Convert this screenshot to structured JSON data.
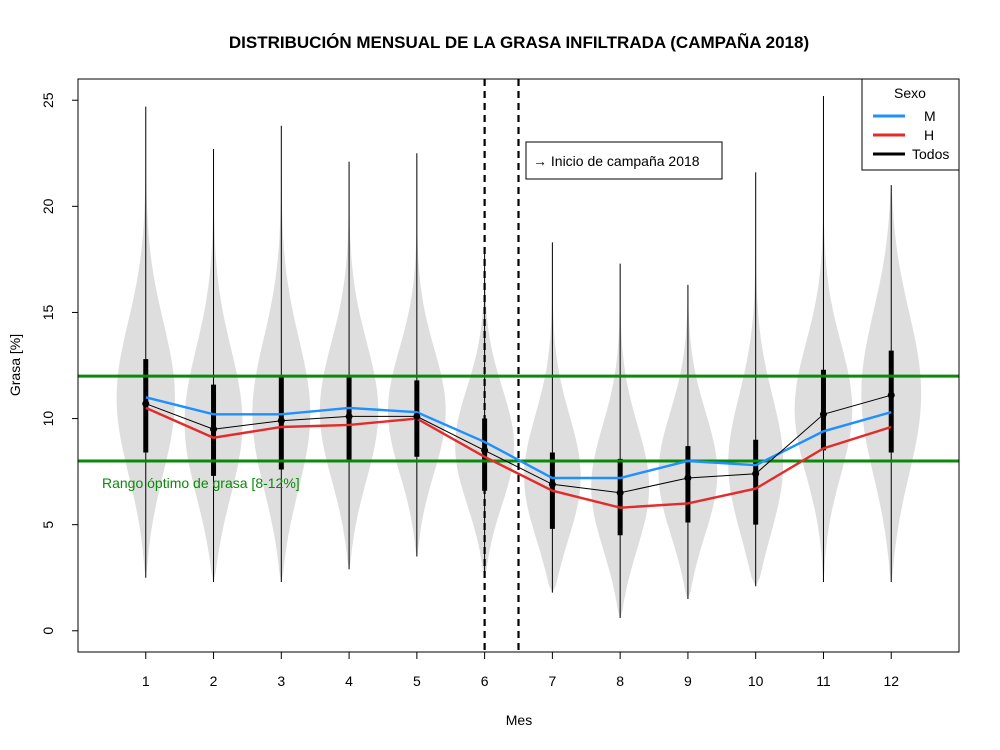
{
  "chart_data": {
    "type": "violin",
    "title": "DISTRIBUCIÓN MENSUAL DE LA GRASA INFILTRADA (CAMPAÑA 2018)",
    "xlabel": "Mes",
    "ylabel": "Grasa [%]",
    "categories": [
      "1",
      "2",
      "3",
      "4",
      "5",
      "6",
      "7",
      "8",
      "9",
      "10",
      "11",
      "12"
    ],
    "xlim": [
      0,
      13
    ],
    "ylim": [
      -1,
      26
    ],
    "yticks": [
      "0",
      "5",
      "10",
      "15",
      "20",
      "25"
    ],
    "colors": {
      "violin": "#dedede",
      "M": "#1e90ff",
      "H": "#e32b2b",
      "Todos": "#000000",
      "range": "#0a8a0a"
    },
    "violins": [
      {
        "mes": 1,
        "min": 2.5,
        "max": 24.7,
        "q1": 8.4,
        "q3": 12.8,
        "median": 10.7
      },
      {
        "mes": 2,
        "min": 2.3,
        "max": 22.7,
        "q1": 7.3,
        "q3": 11.6,
        "median": 9.5
      },
      {
        "mes": 3,
        "min": 2.3,
        "max": 23.8,
        "q1": 7.6,
        "q3": 12.0,
        "median": 9.9
      },
      {
        "mes": 4,
        "min": 2.9,
        "max": 22.1,
        "q1": 8.0,
        "q3": 12.0,
        "median": 10.1
      },
      {
        "mes": 5,
        "min": 3.5,
        "max": 22.5,
        "q1": 8.2,
        "q3": 11.8,
        "median": 10.1
      },
      {
        "mes": 6,
        "min": 2.5,
        "max": 17.8,
        "q1": 6.6,
        "q3": 10.0,
        "median": 8.5
      },
      {
        "mes": 7,
        "min": 1.8,
        "max": 18.3,
        "q1": 4.8,
        "q3": 8.4,
        "median": 6.9
      },
      {
        "mes": 8,
        "min": 0.6,
        "max": 17.3,
        "q1": 4.5,
        "q3": 8.1,
        "median": 6.5
      },
      {
        "mes": 9,
        "min": 1.5,
        "max": 16.3,
        "q1": 5.1,
        "q3": 8.7,
        "median": 7.2
      },
      {
        "mes": 10,
        "min": 2.1,
        "max": 21.6,
        "q1": 5.0,
        "q3": 9.0,
        "median": 7.4
      },
      {
        "mes": 11,
        "min": 2.3,
        "max": 25.2,
        "q1": 8.5,
        "q3": 12.3,
        "median": 10.2
      },
      {
        "mes": 12,
        "min": 2.3,
        "max": 21.0,
        "q1": 8.4,
        "q3": 13.2,
        "median": 11.1
      }
    ],
    "series": [
      {
        "name": "M",
        "values": [
          11.0,
          10.2,
          10.2,
          10.5,
          10.3,
          8.9,
          7.2,
          7.2,
          8.0,
          7.8,
          9.4,
          10.3
        ]
      },
      {
        "name": "H",
        "values": [
          10.5,
          9.1,
          9.6,
          9.7,
          10.0,
          8.2,
          6.6,
          5.8,
          6.0,
          6.7,
          8.6,
          9.6
        ]
      },
      {
        "name": "Todos",
        "values": [
          10.7,
          9.5,
          9.9,
          10.1,
          10.1,
          8.5,
          6.9,
          6.5,
          7.2,
          7.4,
          10.2,
          11.1
        ]
      }
    ],
    "hlines": [
      8,
      12
    ],
    "vlines": [
      6,
      6.5
    ],
    "legend": {
      "title": "Sexo",
      "position": "top-right",
      "entries": [
        "M",
        "H",
        "Todos"
      ]
    },
    "annotations": {
      "campaign": "→ Inicio de campaña 2018",
      "range": "Rango óptimo de grasa [8-12%]"
    }
  }
}
